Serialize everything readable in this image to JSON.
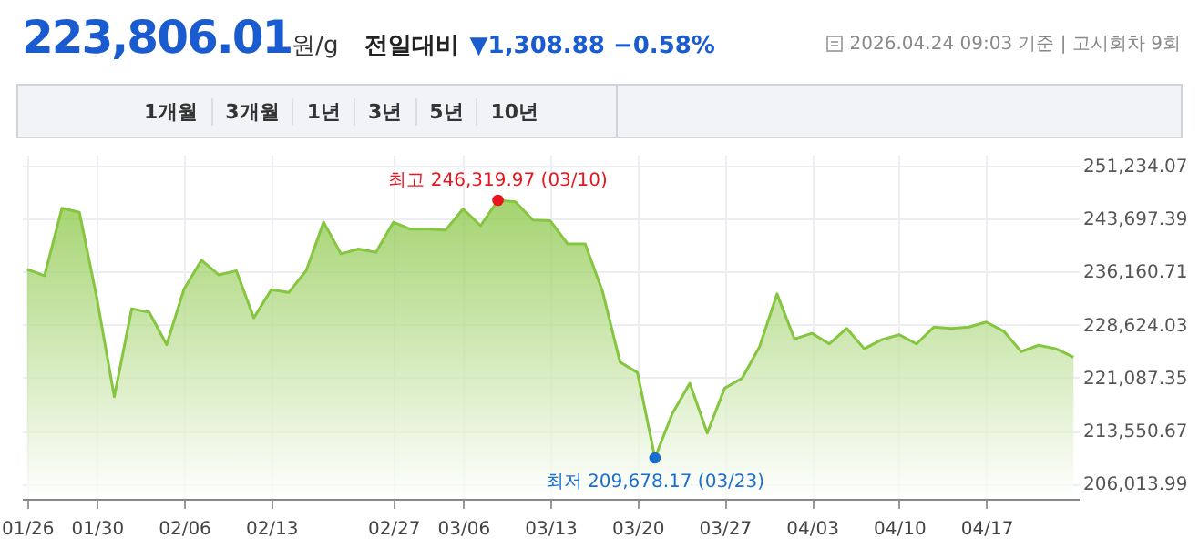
{
  "chart_data": {
    "type": "area",
    "title": "223,806.01원/g",
    "subtitle": "전일대비 ▼1,308.88 −0.58%",
    "categories": [
      "01/26",
      null,
      null,
      null,
      "01/30",
      null,
      null,
      null,
      null,
      "02/06",
      null,
      null,
      null,
      null,
      "02/13",
      null,
      null,
      null,
      null,
      null,
      null,
      "02/27",
      null,
      null,
      null,
      "03/06",
      null,
      null,
      null,
      null,
      "03/13",
      null,
      null,
      null,
      null,
      "03/20",
      null,
      null,
      null,
      null,
      "03/27",
      null,
      null,
      null,
      null,
      "04/03",
      null,
      null,
      null,
      null,
      "04/10",
      null,
      null,
      null,
      null,
      "04/17",
      null,
      null,
      null,
      null,
      null
    ],
    "series": [
      {
        "color": "#86c540",
        "values": [
          236500,
          235600,
          245200,
          244600,
          232400,
          218400,
          230900,
          230400,
          225800,
          233700,
          237800,
          235700,
          236300,
          229600,
          233600,
          233200,
          236300,
          243200,
          238700,
          239400,
          238900,
          243200,
          242200,
          242200,
          242100,
          245100,
          242700,
          246319.97,
          246100,
          243500,
          243400,
          240100,
          240100,
          233300,
          223300,
          221800,
          209678.17,
          216000,
          220300,
          213200,
          219600,
          221000,
          225500,
          233000,
          226600,
          227400,
          225900,
          228100,
          225200,
          226500,
          227200,
          225900,
          228300,
          228100,
          228300,
          229000,
          227700,
          224800,
          225700,
          225200,
          224000
        ]
      },
      {
        "type": "scatter",
        "color": "#e8141e",
        "values": [
          null,
          null,
          null,
          null,
          null,
          null,
          null,
          null,
          null,
          null,
          null,
          null,
          null,
          null,
          null,
          null,
          null,
          null,
          null,
          null,
          null,
          null,
          null,
          null,
          null,
          null,
          null,
          246319.97,
          null,
          null,
          null,
          null,
          null,
          null,
          null,
          null,
          null,
          null,
          null,
          null,
          null,
          null,
          null,
          null,
          null,
          null,
          null,
          null,
          null,
          null,
          null,
          null,
          null,
          null,
          null,
          null,
          null,
          null,
          null,
          null,
          null
        ]
      },
      {
        "type": "scatter",
        "color": "#1a6fce",
        "values": [
          null,
          null,
          null,
          null,
          null,
          null,
          null,
          null,
          null,
          null,
          null,
          null,
          null,
          null,
          null,
          null,
          null,
          null,
          null,
          null,
          null,
          null,
          null,
          null,
          null,
          null,
          null,
          null,
          null,
          null,
          null,
          null,
          null,
          null,
          null,
          null,
          209678.17,
          null,
          null,
          null,
          null,
          null,
          null,
          null,
          null,
          null,
          null,
          null,
          null,
          null,
          null,
          null,
          null,
          null,
          null,
          null,
          null,
          null,
          null,
          null,
          null
        ]
      }
    ],
    "ylim": [
      203850,
      252800
    ],
    "yticks": [
      {
        "value": 206013.99,
        "label": "206,013.99"
      },
      {
        "value": 213550.67,
        "label": "213,550.67"
      },
      {
        "value": 221087.35,
        "label": "221,087.35"
      },
      {
        "value": 228624.03,
        "label": "228,624.03"
      },
      {
        "value": 236160.71,
        "label": "236,160.71"
      },
      {
        "value": 243697.39,
        "label": "243,697.39"
      },
      {
        "value": 251234.07,
        "label": "251,234.07"
      }
    ],
    "grid": true,
    "annotations": [
      "2026.04.24 09:03 기준 | 고시회차 9회",
      "1개월",
      "3개월",
      "1년",
      "3년",
      "5년",
      "10년",
      {
        "text": "최고 246,319.97 (03/10)",
        "y": 246319.97
      },
      {
        "text": "최저 209,678.17 (03/23)",
        "y": 209678.17
      }
    ]
  }
}
